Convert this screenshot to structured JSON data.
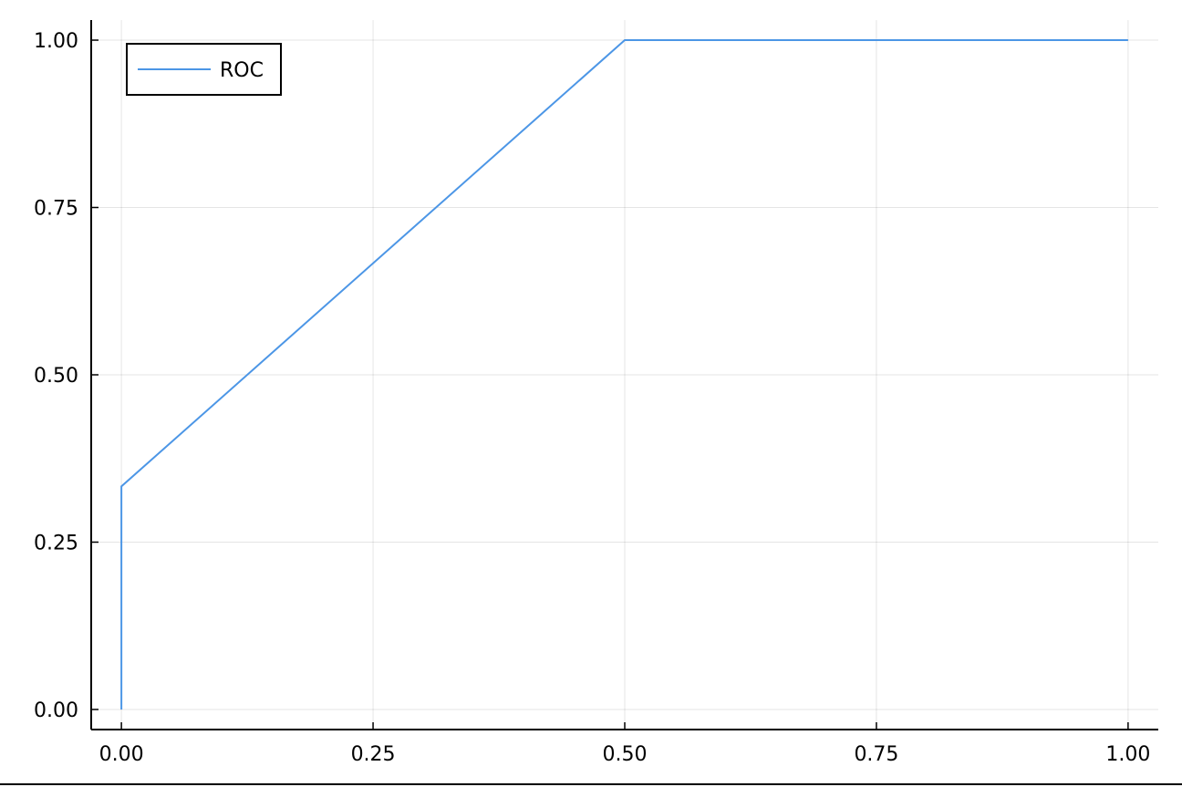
{
  "chart_data": {
    "type": "line",
    "title": "",
    "xlabel": "",
    "ylabel": "",
    "xlim": [
      -0.03,
      1.03
    ],
    "ylim": [
      -0.03,
      1.03
    ],
    "xticks": [
      0.0,
      0.25,
      0.5,
      0.75,
      1.0
    ],
    "xtick_labels": [
      "0.00",
      "0.25",
      "0.50",
      "0.75",
      "1.00"
    ],
    "yticks": [
      0.0,
      0.25,
      0.5,
      0.75,
      1.0
    ],
    "ytick_labels": [
      "0.00",
      "0.25",
      "0.50",
      "0.75",
      "1.00"
    ],
    "grid": true,
    "legend_position": "top-left",
    "series": [
      {
        "name": "ROC",
        "color": "#4c96e6",
        "x": [
          0.0,
          0.0,
          0.5,
          1.0
        ],
        "y": [
          0.0,
          0.3333,
          1.0,
          1.0
        ]
      }
    ]
  }
}
